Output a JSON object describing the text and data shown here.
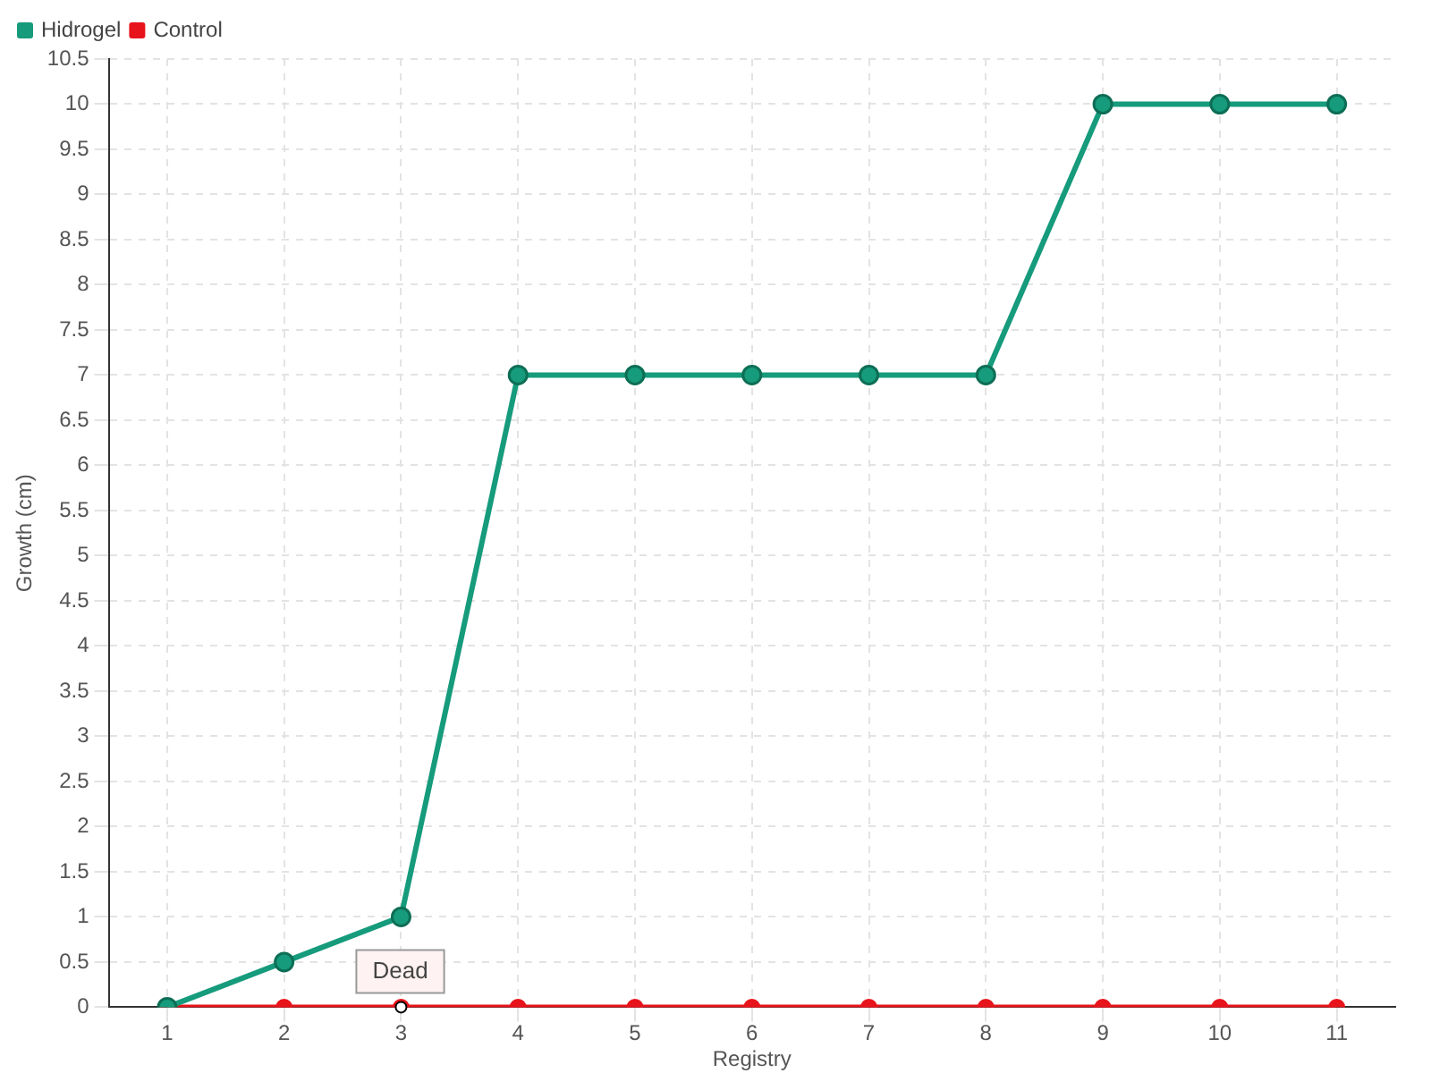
{
  "chart_data": {
    "type": "line",
    "xlabel": "Registry",
    "ylabel": "Growth (cm)",
    "categories": [
      "1",
      "2",
      "3",
      "4",
      "5",
      "6",
      "7",
      "8",
      "9",
      "10",
      "11"
    ],
    "series": [
      {
        "name": "Hidrogel",
        "color": "#169b7c",
        "values": [
          0,
          0.5,
          1,
          7,
          7,
          7,
          7,
          7,
          10,
          10,
          10
        ]
      },
      {
        "name": "Control",
        "color": "#e8141c",
        "values": [
          0,
          0,
          0,
          0,
          0,
          0,
          0,
          0,
          0,
          0,
          0
        ]
      }
    ],
    "ylim": [
      0,
      10.5
    ],
    "yticks": [
      0,
      0.5,
      1,
      1.5,
      2,
      2.5,
      3,
      3.5,
      4,
      4.5,
      5,
      5.5,
      6,
      6.5,
      7,
      7.5,
      8,
      8.5,
      9,
      9.5,
      10,
      10.5
    ],
    "grid": true,
    "legend": "top left",
    "marker": "circle",
    "line_style": "solid",
    "annotations": [
      {
        "text": "Dead",
        "x": "3",
        "y": 0
      }
    ]
  }
}
